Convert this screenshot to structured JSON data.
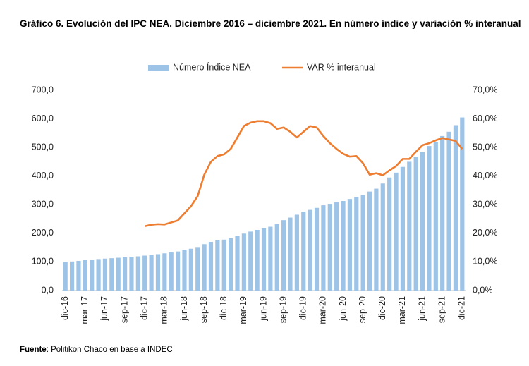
{
  "chart_data": {
    "type": "bar_line",
    "title": "Gráfico 6. Evolución del IPC NEA. Diciembre 2016 – diciembre 2021. En número índice y variación % interanual",
    "source_label": "Fuente",
    "source_text": ": Politikon Chaco en base a INDEC",
    "categories": [
      "dic-16",
      null,
      null,
      "mar-17",
      null,
      null,
      "jun-17",
      null,
      null,
      "sep-17",
      null,
      null,
      "dic-17",
      null,
      null,
      "mar-18",
      null,
      null,
      "jun-18",
      null,
      null,
      "sep-18",
      null,
      null,
      "dic-18",
      null,
      null,
      "mar-19",
      null,
      null,
      "jun-19",
      null,
      null,
      "sep-19",
      null,
      null,
      "dic-19",
      null,
      null,
      "mar-20",
      null,
      null,
      "jun-20",
      null,
      null,
      "sep-20",
      null,
      null,
      "dic-20",
      null,
      null,
      "mar-21",
      null,
      null,
      "jun-21",
      null,
      null,
      "sep-21",
      null,
      null,
      "dic-21"
    ],
    "series": [
      {
        "name": "Número Índice NEA",
        "type": "bar",
        "axis": "y",
        "color": "#9dc3e6",
        "values": [
          100,
          101.5,
          103.5,
          106,
          108.5,
          110,
          111.5,
          113,
          114.5,
          116.5,
          118,
          119.5,
          122,
          124.5,
          127,
          130,
          133,
          136.5,
          141,
          146,
          152,
          162,
          170,
          175,
          178,
          183,
          191,
          199,
          206,
          212,
          218,
          223,
          232,
          246,
          255,
          265,
          276,
          282,
          289,
          298,
          303,
          308,
          313,
          320,
          327,
          334,
          346,
          356,
          374,
          395,
          412,
          432,
          450,
          468,
          485,
          505,
          520,
          540,
          555,
          578,
          605
        ]
      },
      {
        "name": "VAR % interanual",
        "type": "line",
        "axis": "y2",
        "color": "#ed7d31",
        "values": [
          null,
          null,
          null,
          null,
          null,
          null,
          null,
          null,
          null,
          null,
          null,
          null,
          22.5,
          23,
          23.2,
          23.1,
          23.8,
          24.5,
          27,
          29.5,
          33,
          40.5,
          45,
          47,
          47.6,
          49.5,
          53.5,
          57.5,
          58.7,
          59.2,
          59.2,
          58.5,
          56.5,
          57,
          55.5,
          53.5,
          55.5,
          57.5,
          57,
          54,
          51.5,
          49.5,
          47.8,
          46.8,
          47,
          44.5,
          40.5,
          41,
          40.3,
          42,
          43.5,
          46,
          46,
          48.5,
          50.8,
          51.5,
          52.5,
          53.3,
          52.8,
          52.3,
          49.5
        ]
      }
    ],
    "ylim": [
      0,
      700
    ],
    "yticks": [
      {
        "value": 0,
        "label": "0,0"
      },
      {
        "value": 100,
        "label": "100,0"
      },
      {
        "value": 200,
        "label": "200,0"
      },
      {
        "value": 300,
        "label": "300,0"
      },
      {
        "value": 400,
        "label": "400,0"
      },
      {
        "value": 500,
        "label": "500,0"
      },
      {
        "value": 600,
        "label": "600,0"
      },
      {
        "value": 700,
        "label": "700,0"
      }
    ],
    "y2lim": [
      0,
      70
    ],
    "y2ticks": [
      {
        "value": 0,
        "label": "0,0%"
      },
      {
        "value": 10,
        "label": "10,0%"
      },
      {
        "value": 20,
        "label": "20,0%"
      },
      {
        "value": 30,
        "label": "30,0%"
      },
      {
        "value": 40,
        "label": "40,0%"
      },
      {
        "value": 50,
        "label": "50,0%"
      },
      {
        "value": 60,
        "label": "60,0%"
      },
      {
        "value": 70,
        "label": "70,0%"
      }
    ],
    "legend": "top"
  }
}
